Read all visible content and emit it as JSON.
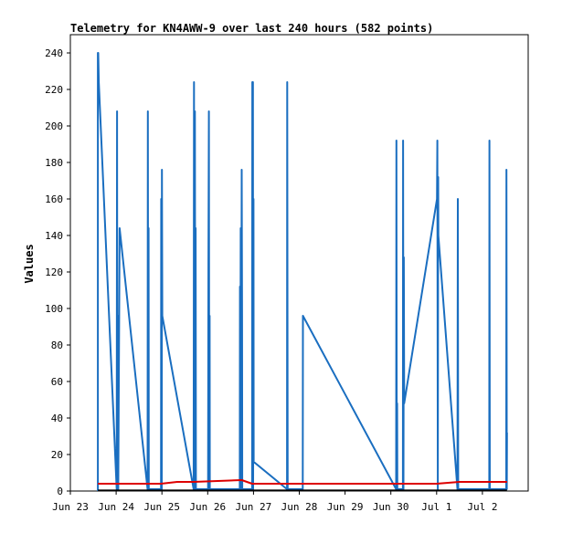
{
  "chart_data": {
    "type": "line",
    "title": "Telemetry for KN4AWW-9 over last 240 hours (582 points)",
    "xlabel": "",
    "ylabel": "Values",
    "ylim": [
      0,
      250
    ],
    "xlim": [
      0,
      240
    ],
    "y_ticks": [
      0,
      20,
      40,
      60,
      80,
      100,
      120,
      140,
      160,
      180,
      200,
      220,
      240
    ],
    "x_ticks": [
      {
        "label": "Jun 23",
        "hours": 0
      },
      {
        "label": "Jun 24",
        "hours": 24
      },
      {
        "label": "Jun 25",
        "hours": 48
      },
      {
        "label": "Jun 26",
        "hours": 72
      },
      {
        "label": "Jun 27",
        "hours": 96
      },
      {
        "label": "Jun 28",
        "hours": 120
      },
      {
        "label": "Jun 29",
        "hours": 144
      },
      {
        "label": "Jun 30",
        "hours": 168
      },
      {
        "label": "Jul 1",
        "hours": 192
      },
      {
        "label": "Jul 2",
        "hours": 216
      }
    ],
    "grid": false,
    "series": [
      {
        "color": "#1a6ec0",
        "points": [
          [
            14.4,
            0
          ],
          [
            14.4,
            240
          ],
          [
            14.6,
            240
          ],
          [
            14.9,
            224
          ],
          [
            24.3,
            1
          ],
          [
            24.5,
            208
          ],
          [
            24.6,
            1
          ],
          [
            25.0,
            96
          ],
          [
            25.1,
            1
          ],
          [
            25.8,
            144
          ],
          [
            40.5,
            1
          ],
          [
            40.6,
            208
          ],
          [
            40.8,
            1
          ],
          [
            41.0,
            144
          ],
          [
            41.1,
            1
          ],
          [
            47.5,
            1
          ],
          [
            47.6,
            160
          ],
          [
            47.9,
            1
          ],
          [
            48.0,
            176
          ],
          [
            48.2,
            96
          ],
          [
            64.6,
            1
          ],
          [
            64.8,
            224
          ],
          [
            65.0,
            1
          ],
          [
            65.3,
            208
          ],
          [
            65.5,
            1
          ],
          [
            65.7,
            144
          ],
          [
            65.8,
            1
          ],
          [
            72.2,
            1
          ],
          [
            72.4,
            124
          ],
          [
            72.6,
            208
          ],
          [
            72.8,
            1
          ],
          [
            73.0,
            96
          ],
          [
            73.1,
            1
          ],
          [
            88.8,
            1
          ],
          [
            88.9,
            112
          ],
          [
            89.1,
            1
          ],
          [
            89.3,
            144
          ],
          [
            89.5,
            1
          ],
          [
            89.8,
            176
          ],
          [
            90.0,
            96
          ],
          [
            90.1,
            1
          ],
          [
            95.3,
            1
          ],
          [
            95.4,
            224
          ],
          [
            95.7,
            224
          ],
          [
            95.8,
            1
          ],
          [
            96.0,
            160
          ],
          [
            96.1,
            16
          ],
          [
            113.6,
            1
          ],
          [
            113.7,
            224
          ],
          [
            113.9,
            1
          ],
          [
            121.8,
            1
          ],
          [
            121.9,
            96
          ],
          [
            170.8,
            1
          ],
          [
            170.9,
            192
          ],
          [
            171.1,
            1
          ],
          [
            171.3,
            48
          ],
          [
            171.4,
            1
          ],
          [
            174.3,
            1
          ],
          [
            174.4,
            192
          ],
          [
            174.6,
            1
          ],
          [
            174.8,
            128
          ],
          [
            175.0,
            48
          ],
          [
            192.2,
            160
          ],
          [
            192.4,
            192
          ],
          [
            192.6,
            1
          ],
          [
            192.8,
            172
          ],
          [
            192.9,
            140
          ],
          [
            202.9,
            1
          ],
          [
            203.1,
            160
          ],
          [
            203.3,
            1
          ],
          [
            219.6,
            1
          ],
          [
            219.7,
            192
          ],
          [
            219.9,
            1
          ],
          [
            228.5,
            1
          ],
          [
            228.6,
            176
          ],
          [
            228.8,
            1
          ],
          [
            228.9,
            32
          ]
        ]
      },
      {
        "color": "#dd0000",
        "points": [
          [
            14.4,
            4
          ],
          [
            47.5,
            4
          ],
          [
            56.0,
            5
          ],
          [
            64.6,
            5
          ],
          [
            89.8,
            6
          ],
          [
            95.3,
            4
          ],
          [
            120.0,
            4
          ],
          [
            168.0,
            4
          ],
          [
            192.0,
            4
          ],
          [
            204.0,
            5
          ],
          [
            216.0,
            5
          ],
          [
            228.9,
            5
          ]
        ]
      },
      {
        "color": "#000000",
        "points": [
          [
            14.4,
            0.3
          ],
          [
            228.9,
            0.3
          ]
        ]
      }
    ]
  }
}
